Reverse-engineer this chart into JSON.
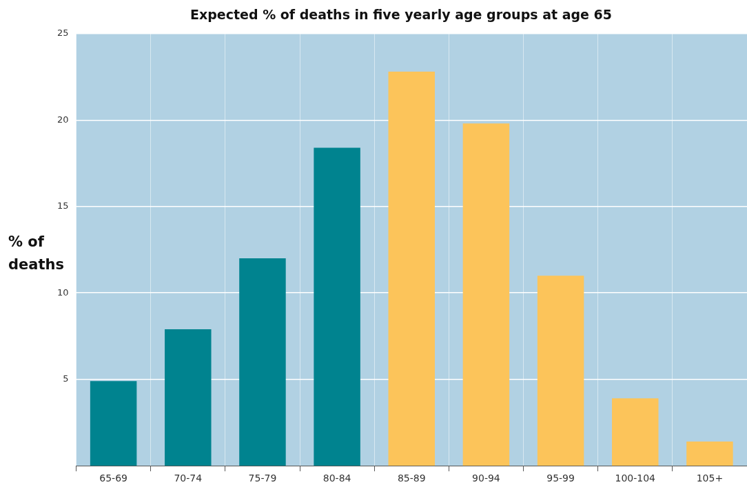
{
  "chart_data": {
    "type": "bar",
    "title": "Expected % of deaths in five yearly age groups at age 65",
    "ylabel": "% of deaths",
    "categories": [
      "65-69",
      "70-74",
      "75-79",
      "80-84",
      "85-89",
      "90-94",
      "95-99",
      "100-104",
      "105+"
    ],
    "values": [
      4.9,
      7.9,
      12.0,
      18.4,
      22.8,
      19.8,
      11.0,
      3.9,
      1.4
    ],
    "colors": [
      "#00838f",
      "#00838f",
      "#00838f",
      "#00838f",
      "#fcc45a",
      "#fcc45a",
      "#fcc45a",
      "#fcc45a",
      "#fcc45a"
    ],
    "ylim": [
      0,
      25
    ],
    "yticks": [
      5,
      10,
      15,
      20,
      25
    ],
    "grid": true
  }
}
